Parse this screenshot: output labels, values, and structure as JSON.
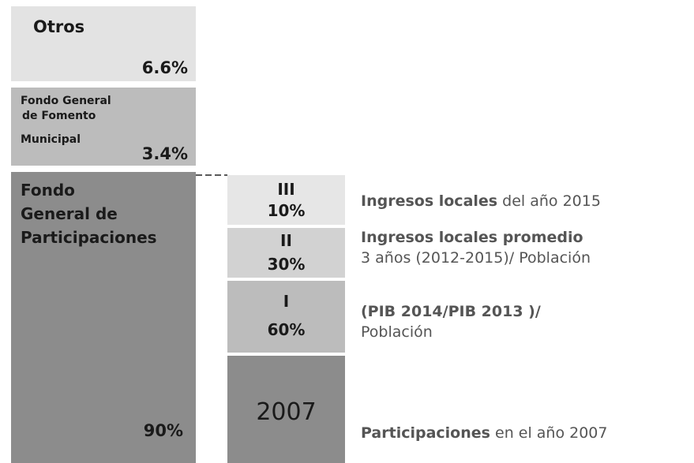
{
  "left": [
    {
      "lines": [
        "Otros"
      ],
      "value": "6.6%"
    },
    {
      "lines": [
        "Fondo General",
        "de Fomento",
        "Municipal"
      ],
      "value": "3.4%"
    },
    {
      "lines": [
        "Fondo",
        "General de",
        "Participaciones"
      ],
      "value": "90%"
    }
  ],
  "right": [
    {
      "label": "III",
      "value": "10%",
      "bold": "Ingresos locales",
      "text": "del año 2015"
    },
    {
      "label": "II",
      "value": "30%",
      "bold": "Ingresos locales promedio",
      "text": "3 años (2012-2015)/ Población"
    },
    {
      "label": "I",
      "value": "60%",
      "bold": "(PIB 2014/PIB 2013 )/",
      "text": "Población"
    },
    {
      "label": "2007",
      "bold": "Participaciones",
      "text": "en el año 2007"
    }
  ]
}
